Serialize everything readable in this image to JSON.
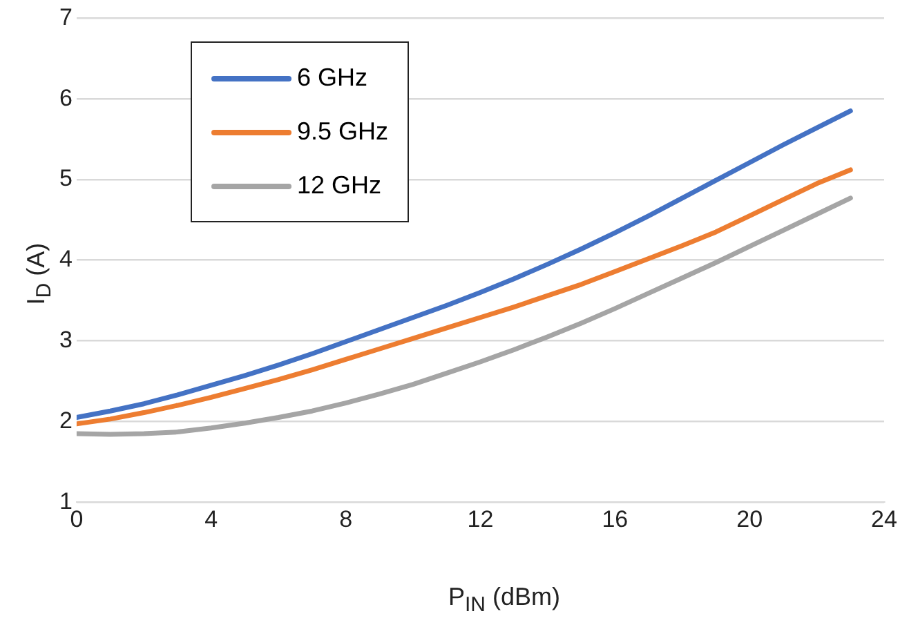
{
  "chart_data": {
    "type": "line",
    "xlabel": "P$_{IN}$ (dBm)",
    "ylabel": "I$_{D}$ (A)",
    "x": [
      0,
      1,
      2,
      3,
      4,
      5,
      6,
      7,
      8,
      9,
      10,
      11,
      12,
      13,
      14,
      15,
      16,
      17,
      18,
      19,
      20,
      21,
      22,
      23
    ],
    "series": [
      {
        "name": "6 GHz",
        "color": "#4472c4",
        "values": [
          2.05,
          2.13,
          2.22,
          2.33,
          2.45,
          2.57,
          2.7,
          2.84,
          2.99,
          3.14,
          3.29,
          3.44,
          3.6,
          3.77,
          3.95,
          4.14,
          4.34,
          4.55,
          4.77,
          4.99,
          5.21,
          5.43,
          5.64,
          5.85
        ]
      },
      {
        "name": "9.5 GHz",
        "color": "#ed7d31",
        "values": [
          1.97,
          2.03,
          2.11,
          2.2,
          2.3,
          2.41,
          2.52,
          2.64,
          2.77,
          2.9,
          3.03,
          3.16,
          3.29,
          3.42,
          3.56,
          3.7,
          3.86,
          4.02,
          4.18,
          4.35,
          4.55,
          4.75,
          4.95,
          5.12
        ]
      },
      {
        "name": "12 GHz",
        "color": "#a5a5a5",
        "values": [
          1.85,
          1.84,
          1.85,
          1.87,
          1.92,
          1.98,
          2.05,
          2.13,
          2.23,
          2.34,
          2.46,
          2.6,
          2.74,
          2.89,
          3.05,
          3.22,
          3.4,
          3.59,
          3.78,
          3.97,
          4.17,
          4.37,
          4.57,
          4.77
        ]
      }
    ],
    "xlim": [
      0,
      24
    ],
    "xticks": [
      0,
      4,
      8,
      12,
      16,
      20,
      24
    ],
    "ylim": [
      1,
      7
    ],
    "yticks": [
      1,
      2,
      3,
      4,
      5,
      6,
      7
    ],
    "grid": "y",
    "legend": "top left",
    "marker": "none",
    "line_style": "solid"
  }
}
